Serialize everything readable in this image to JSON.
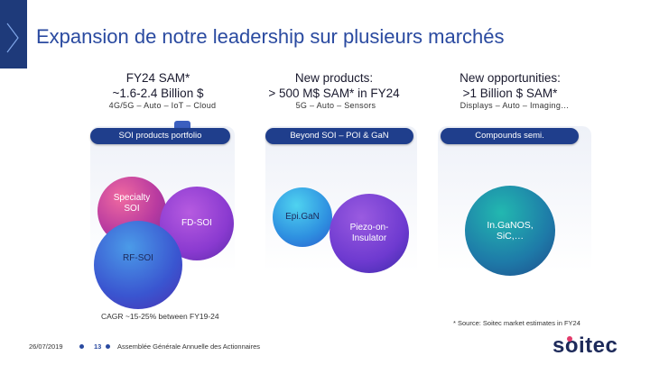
{
  "slide": {
    "title": "Expansion de notre leadership sur plusieurs marchés"
  },
  "columns": [
    {
      "heading_line1": "FY24 SAM*",
      "heading_line2": "~1.6-2.4 Billion $",
      "sub": "4G/5G – Auto – IoT – Cloud",
      "pill": "SOI products portfolio"
    },
    {
      "heading_line1": "New products:",
      "heading_line2": "> 500 M$ SAM* in FY24",
      "sub": "5G – Auto – Sensors",
      "pill": "Beyond SOI – POI & GaN"
    },
    {
      "heading_line1": "New opportunities:",
      "heading_line2": ">1 Billion $ SAM*",
      "sub": "Displays – Auto – Imaging…",
      "pill": "Compounds semi."
    }
  ],
  "bubbles": {
    "specialty_soi": "Specialty SOI",
    "fd_soi": "FD-SOI",
    "rf_soi": "RF-SOI",
    "epi_gan": "Epi.GaN",
    "piezo": "Piezo-on-Insulator",
    "ingan": "In.GaNOS, SiC,…"
  },
  "notes": {
    "cagr": "CAGR ~15-25% between FY19-24",
    "source": "* Source: Soitec market estimates in FY24"
  },
  "footer": {
    "date": "26/07/2019",
    "page": "13",
    "event": "Assemblée Générale Annuelle des Actionnaires"
  },
  "logo": {
    "text": "soitec"
  },
  "colors": {
    "brand_navy": "#1d2a5a",
    "title_blue": "#2a4aa0",
    "pill_blue": "#1f3e8c",
    "logo_accent": "#e23a6a"
  }
}
